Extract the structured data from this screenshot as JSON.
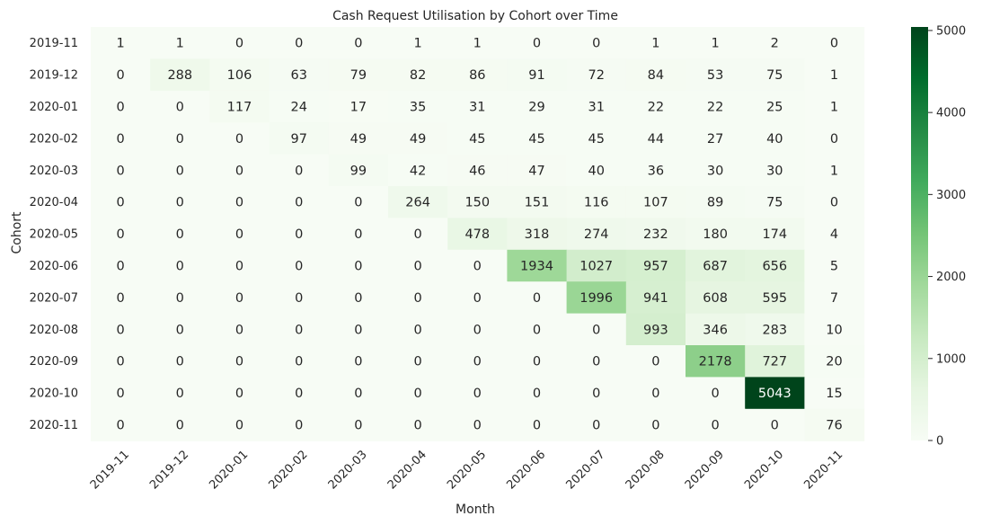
{
  "chart_data": {
    "type": "heatmap",
    "title": "Cash Request Utilisation by Cohort over Time",
    "xlabel": "Month",
    "ylabel": "Cohort",
    "x": [
      "2019-11",
      "2019-12",
      "2020-01",
      "2020-02",
      "2020-03",
      "2020-04",
      "2020-05",
      "2020-06",
      "2020-07",
      "2020-08",
      "2020-09",
      "2020-10",
      "2020-11"
    ],
    "y": [
      "2019-11",
      "2019-12",
      "2020-01",
      "2020-02",
      "2020-03",
      "2020-04",
      "2020-05",
      "2020-06",
      "2020-07",
      "2020-08",
      "2020-09",
      "2020-10",
      "2020-11"
    ],
    "values": [
      [
        1,
        1,
        0,
        0,
        0,
        1,
        1,
        0,
        0,
        1,
        1,
        2,
        0
      ],
      [
        0,
        288,
        106,
        63,
        79,
        82,
        86,
        91,
        72,
        84,
        53,
        75,
        1
      ],
      [
        0,
        0,
        117,
        24,
        17,
        35,
        31,
        29,
        31,
        22,
        22,
        25,
        1
      ],
      [
        0,
        0,
        0,
        97,
        49,
        49,
        45,
        45,
        45,
        44,
        27,
        40,
        0
      ],
      [
        0,
        0,
        0,
        0,
        99,
        42,
        46,
        47,
        40,
        36,
        30,
        30,
        1
      ],
      [
        0,
        0,
        0,
        0,
        0,
        264,
        150,
        151,
        116,
        107,
        89,
        75,
        0
      ],
      [
        0,
        0,
        0,
        0,
        0,
        0,
        478,
        318,
        274,
        232,
        180,
        174,
        4
      ],
      [
        0,
        0,
        0,
        0,
        0,
        0,
        0,
        1934,
        1027,
        957,
        687,
        656,
        5
      ],
      [
        0,
        0,
        0,
        0,
        0,
        0,
        0,
        0,
        1996,
        941,
        608,
        595,
        7
      ],
      [
        0,
        0,
        0,
        0,
        0,
        0,
        0,
        0,
        0,
        993,
        346,
        283,
        10
      ],
      [
        0,
        0,
        0,
        0,
        0,
        0,
        0,
        0,
        0,
        0,
        2178,
        727,
        20
      ],
      [
        0,
        0,
        0,
        0,
        0,
        0,
        0,
        0,
        0,
        0,
        0,
        5043,
        15
      ],
      [
        0,
        0,
        0,
        0,
        0,
        0,
        0,
        0,
        0,
        0,
        0,
        0,
        76
      ]
    ],
    "colorbar": {
      "range": [
        0,
        5043
      ],
      "ticks": [
        0,
        1000,
        2000,
        3000,
        4000,
        5000
      ],
      "colormap": "Greens"
    }
  }
}
